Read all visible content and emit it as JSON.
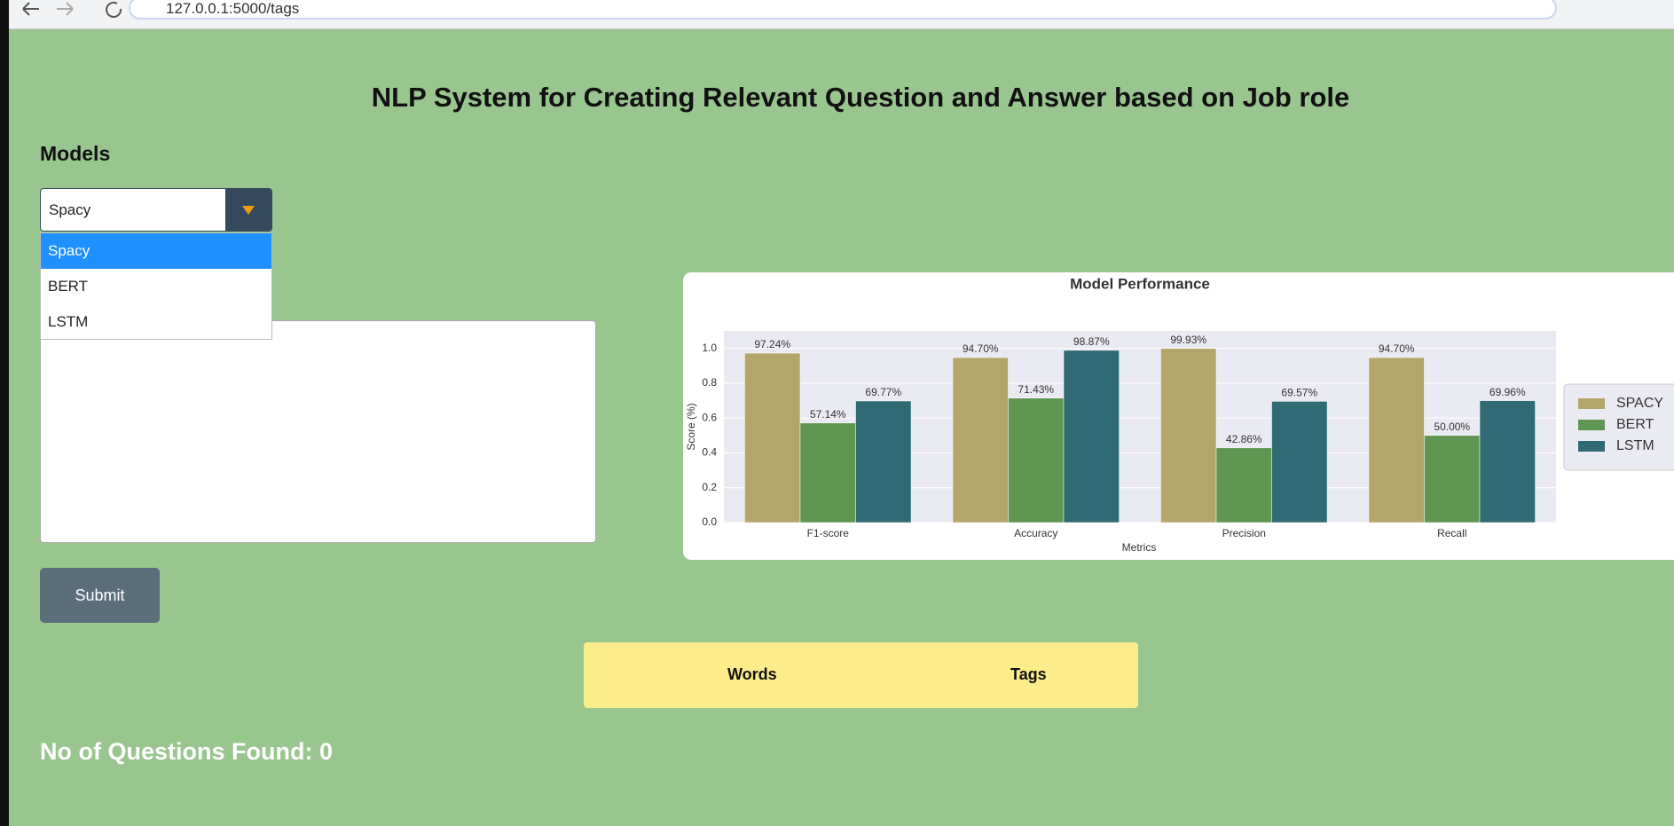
{
  "browser": {
    "url": "127.0.0.1:5000/tags"
  },
  "header": {
    "title": "NLP System for Creating Relevant Question and Answer based on Job role"
  },
  "models": {
    "label": "Models",
    "selected": "Spacy",
    "options": [
      "Spacy",
      "BERT",
      "LSTM"
    ]
  },
  "form": {
    "submit": "Submit"
  },
  "table": {
    "headers": [
      "Words",
      "Tags"
    ]
  },
  "result": {
    "text": "No of Questions Found: 0"
  },
  "chart_data": {
    "type": "bar",
    "title": "Model Performance",
    "x_label": "Metrics",
    "y_label": "Score (%)",
    "categories": [
      "F1-score",
      "Accuracy",
      "Precision",
      "Recall"
    ],
    "series": [
      {
        "name": "SPACY",
        "color": "#b4a56a",
        "values": [
          0.9724,
          0.947,
          0.9993,
          0.947
        ],
        "value_labels": [
          "97.24%",
          "94.70%",
          "99.93%",
          "94.70%"
        ]
      },
      {
        "name": "BERT",
        "color": "#5f9651",
        "values": [
          0.5714,
          0.7143,
          0.4286,
          0.5
        ],
        "value_labels": [
          "57.14%",
          "71.43%",
          "42.86%",
          "50.00%"
        ]
      },
      {
        "name": "LSTM",
        "color": "#306a74",
        "values": [
          0.6977,
          0.9887,
          0.6957,
          0.6996
        ],
        "value_labels": [
          "69.77%",
          "98.87%",
          "69.57%",
          "69.96%"
        ]
      }
    ],
    "ylim": [
      0,
      1.1
    ],
    "yticks": [
      {
        "value": 0,
        "label": "0.0"
      },
      0.2,
      0.4,
      0.6,
      0.8,
      {
        "value": 1,
        "label": "1.0"
      }
    ],
    "grid": true,
    "legend": "right"
  }
}
